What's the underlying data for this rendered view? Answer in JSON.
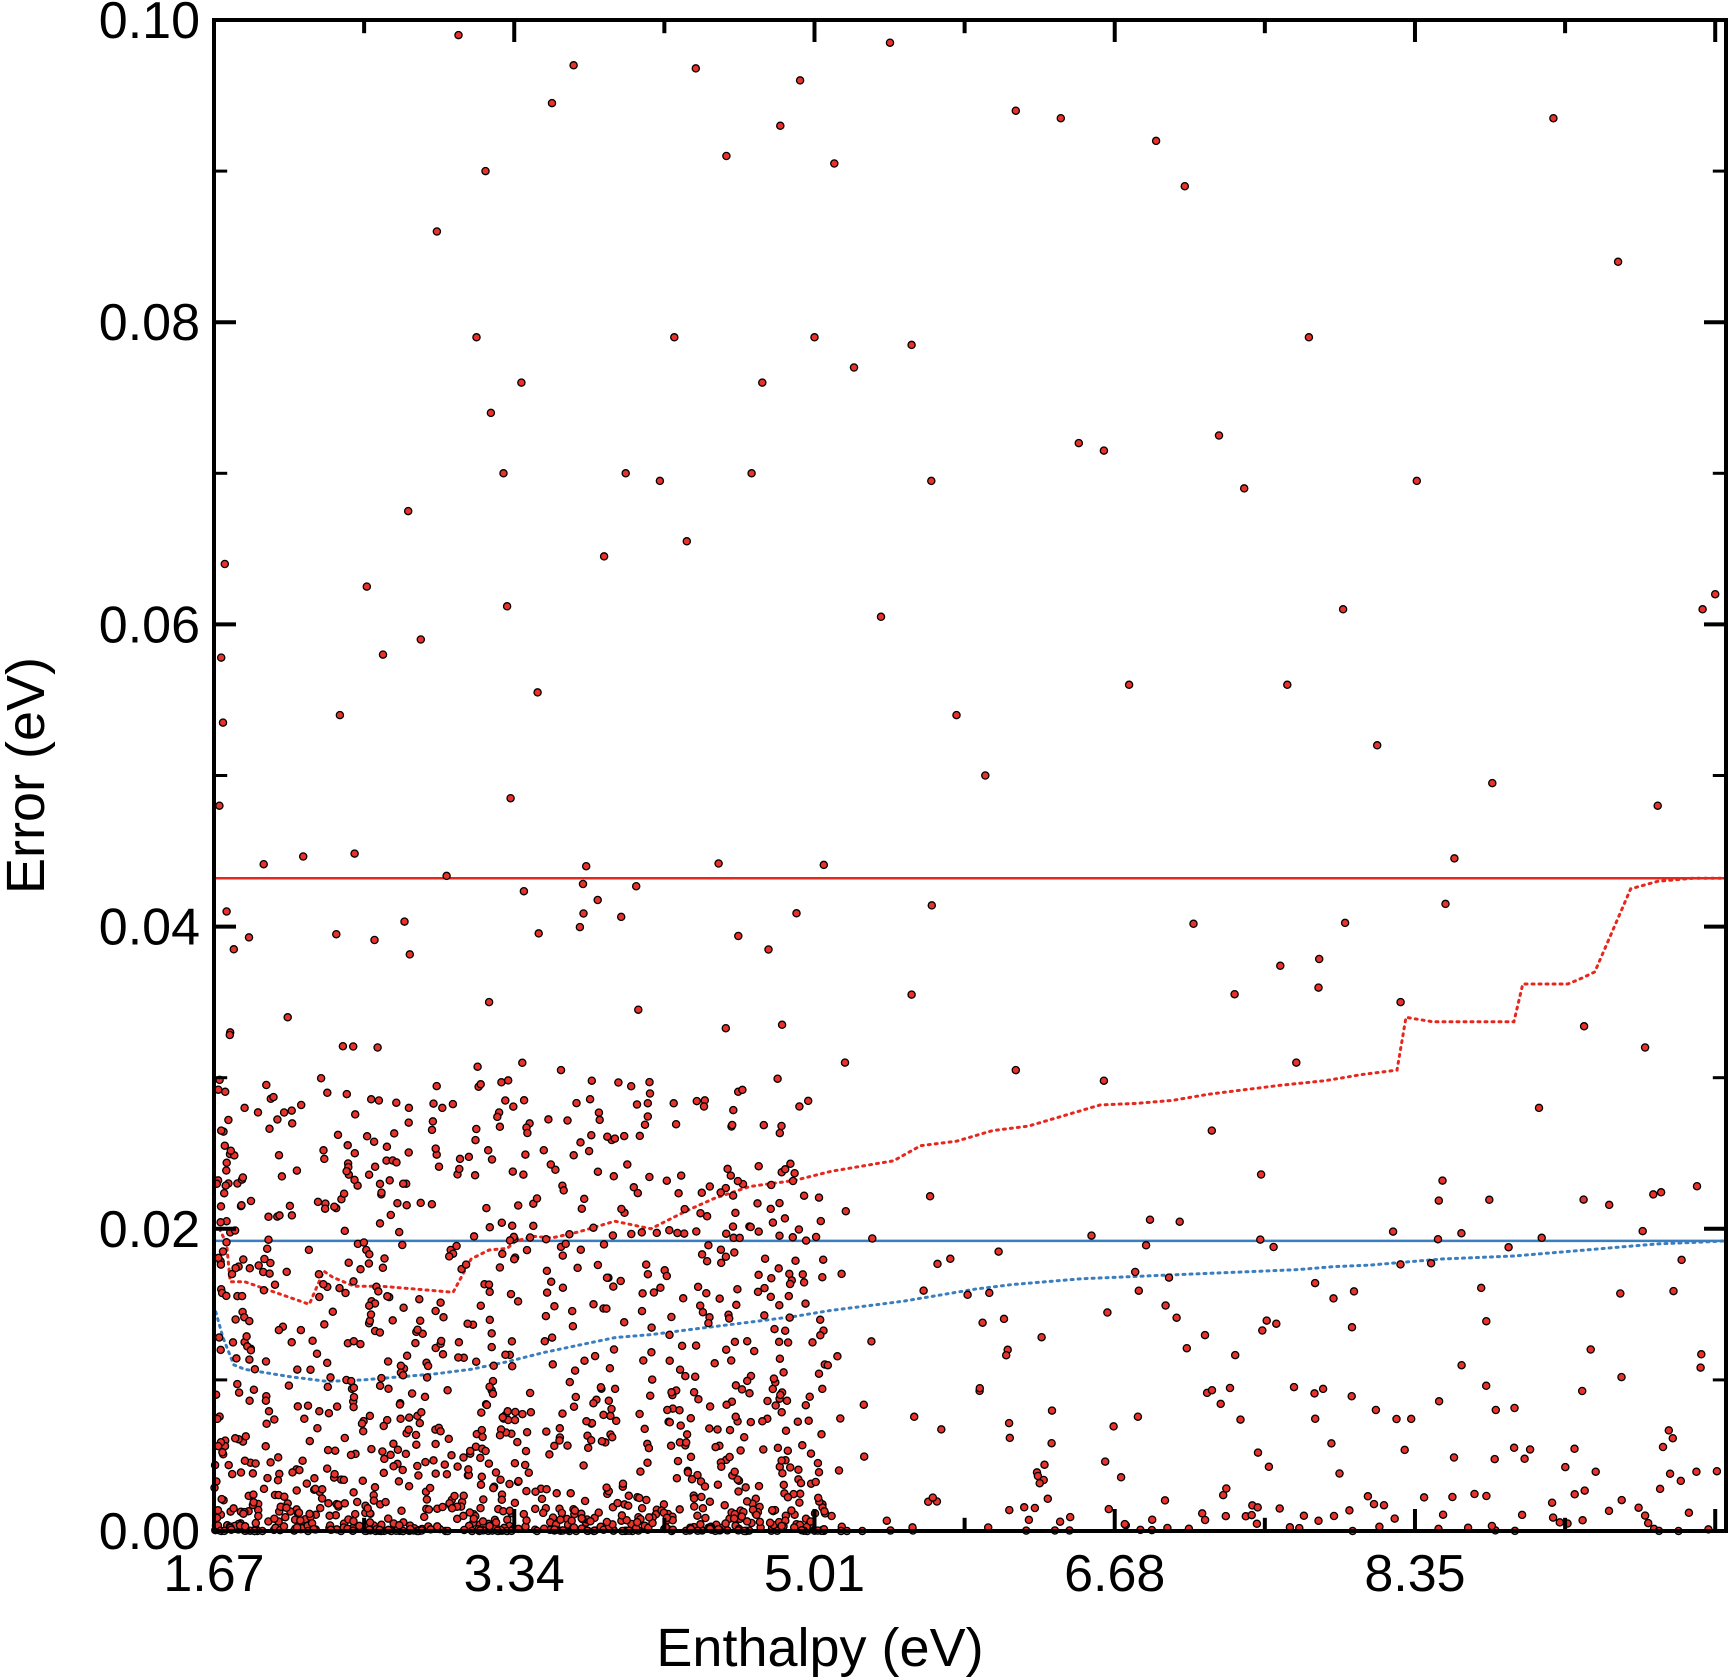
{
  "chart_data": {
    "type": "scatter",
    "xlabel": "Enthalpy (eV)",
    "ylabel": "Error (eV)",
    "xlim": [
      1.67,
      10.08
    ],
    "ylim": [
      0.0,
      0.1
    ],
    "x_ticks": [
      "1.67",
      "3.34",
      "5.01",
      "6.68",
      "8.35"
    ],
    "y_ticks": [
      "0.00",
      "0.02",
      "0.04",
      "0.06",
      "0.08",
      "0.10"
    ],
    "grid": false,
    "colors": {
      "points_fill": "#e8322b",
      "points_edge": "#000000",
      "red": "#e5281e",
      "blue": "#3a7ebf",
      "axes": "#000000"
    },
    "reference_lines": [
      {
        "y": 0.0432,
        "color": "red",
        "style": "solid"
      },
      {
        "y": 0.0192,
        "color": "blue",
        "style": "solid"
      }
    ],
    "red_dotted": {
      "x": [
        1.7,
        1.74,
        1.76,
        1.84,
        2.2,
        2.28,
        2.33,
        2.45,
        2.6,
        2.8,
        3.0,
        3.1,
        3.2,
        3.3,
        3.35,
        3.45,
        3.55,
        3.7,
        3.9,
        4.1,
        4.3,
        4.45,
        4.65,
        4.9,
        5.1,
        5.3,
        5.45,
        5.6,
        5.8,
        6.0,
        6.2,
        6.4,
        6.6,
        6.8,
        7.0,
        7.2,
        7.4,
        7.6,
        7.85,
        8.05,
        8.25,
        8.3,
        8.45,
        8.7,
        8.9,
        8.95,
        9.2,
        9.28,
        9.35,
        9.55,
        9.7,
        9.9,
        10.08
      ],
      "y": [
        0.02,
        0.019,
        0.0165,
        0.0165,
        0.015,
        0.0172,
        0.0168,
        0.0162,
        0.0162,
        0.016,
        0.0158,
        0.018,
        0.0186,
        0.0187,
        0.0192,
        0.0195,
        0.0194,
        0.0198,
        0.0205,
        0.02,
        0.0212,
        0.022,
        0.0228,
        0.0232,
        0.0238,
        0.0242,
        0.0245,
        0.0255,
        0.0258,
        0.0265,
        0.0268,
        0.0275,
        0.0282,
        0.0283,
        0.0285,
        0.0289,
        0.0292,
        0.0295,
        0.0298,
        0.0302,
        0.0305,
        0.034,
        0.0337,
        0.0337,
        0.0337,
        0.0362,
        0.0362,
        0.0366,
        0.037,
        0.0425,
        0.043,
        0.0432,
        0.0432
      ]
    },
    "blue_dotted": {
      "x": [
        1.68,
        1.72,
        1.78,
        1.84,
        2.1,
        2.3,
        2.5,
        2.7,
        2.9,
        3.1,
        3.3,
        3.5,
        3.7,
        3.9,
        4.1,
        4.3,
        4.5,
        4.7,
        4.9,
        5.1,
        5.3,
        5.5,
        5.7,
        5.9,
        6.1,
        6.3,
        6.5,
        6.7,
        6.9,
        7.1,
        7.3,
        7.5,
        7.7,
        7.9,
        8.1,
        8.3,
        8.5,
        8.7,
        8.9,
        9.1,
        9.3,
        9.5,
        9.7,
        9.9,
        10.08
      ],
      "y": [
        0.0145,
        0.0128,
        0.011,
        0.0107,
        0.0102,
        0.0099,
        0.01,
        0.0102,
        0.0104,
        0.0107,
        0.0112,
        0.0118,
        0.0123,
        0.0128,
        0.013,
        0.0133,
        0.0136,
        0.0139,
        0.0142,
        0.0146,
        0.0149,
        0.0152,
        0.0156,
        0.016,
        0.0163,
        0.0165,
        0.0167,
        0.0168,
        0.0169,
        0.017,
        0.0171,
        0.0172,
        0.0173,
        0.0175,
        0.0176,
        0.0178,
        0.018,
        0.0181,
        0.0182,
        0.0184,
        0.0186,
        0.0188,
        0.019,
        0.0191,
        0.0192
      ]
    },
    "points": {
      "x": [
        1.71,
        1.73,
        1.72,
        1.7,
        1.74,
        1.78,
        1.76,
        1.75,
        1.73,
        1.8,
        1.82,
        1.74,
        1.72,
        1.77,
        1.71,
        1.79,
        1.84,
        2.3,
        2.37,
        2.52,
        2.61,
        2.75,
        2.82,
        2.91,
        3.03,
        3.13,
        3.18,
        3.21,
        3.28,
        3.3,
        3.32,
        3.38,
        3.47,
        3.55,
        3.67,
        3.74,
        3.84,
        3.96,
        4.15,
        4.23,
        4.3,
        4.35,
        4.52,
        4.66,
        4.72,
        4.82,
        4.93,
        5.01,
        5.12,
        5.23,
        5.38,
        5.43,
        5.55,
        5.66,
        5.8,
        5.96,
        6.13,
        6.38,
        6.48,
        6.62,
        6.76,
        6.91,
        7.07,
        7.26,
        7.4,
        7.64,
        7.76,
        7.95,
        8.14,
        8.36,
        8.52,
        8.78,
        9.12,
        9.48,
        9.7,
        9.95,
        10.02,
        1.75,
        1.84,
        2.08,
        2.35,
        2.58,
        2.94,
        3.2,
        3.6,
        4.03,
        4.4,
        4.83,
        5.18,
        5.55,
        6.13,
        6.62,
        7.22,
        7.69,
        8.27,
        9.04,
        9.63
      ],
      "y": [
        0.0578,
        0.064,
        0.0535,
        0.048,
        0.041,
        0.0385,
        0.033,
        0.0272,
        0.0255,
        0.023,
        0.0215,
        0.0205,
        0.0185,
        0.017,
        0.016,
        0.014,
        0.0125,
        0.029,
        0.054,
        0.0625,
        0.058,
        0.0675,
        0.059,
        0.086,
        0.099,
        0.079,
        0.09,
        0.074,
        0.07,
        0.0612,
        0.0485,
        0.076,
        0.0555,
        0.0945,
        0.097,
        0.044,
        0.0645,
        0.07,
        0.0695,
        0.079,
        0.0655,
        0.0968,
        0.091,
        0.07,
        0.076,
        0.093,
        0.096,
        0.079,
        0.0905,
        0.077,
        0.0605,
        0.0985,
        0.0785,
        0.0695,
        0.054,
        0.05,
        0.094,
        0.0935,
        0.072,
        0.0715,
        0.056,
        0.092,
        0.089,
        0.0725,
        0.069,
        0.056,
        0.079,
        0.061,
        0.052,
        0.0695,
        0.0415,
        0.0495,
        0.0935,
        0.084,
        0.048,
        0.061,
        0.062,
        0.023,
        0.028,
        0.034,
        0.0395,
        0.032,
        0.028,
        0.035,
        0.0305,
        0.0345,
        0.0285,
        0.0335,
        0.031,
        0.0355,
        0.0305,
        0.0298,
        0.0265,
        0.031,
        0.035,
        0.028,
        0.032
      ]
    }
  }
}
